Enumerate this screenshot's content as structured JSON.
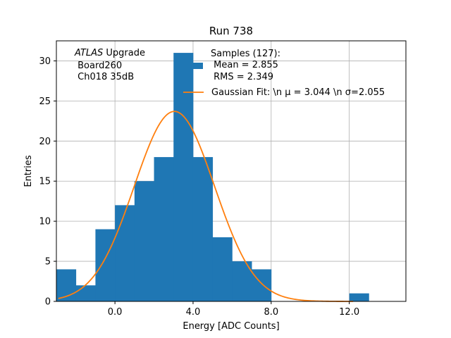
{
  "chart_data": {
    "type": "bar",
    "title": "Run 738",
    "xlabel": "Energy [ADC Counts]",
    "ylabel": "Entries",
    "xlim": [
      -3.0,
      14.9
    ],
    "ylim": [
      0,
      32.5
    ],
    "x_ticks": [
      0,
      4,
      8,
      12
    ],
    "x_tick_labels": [
      "0.0",
      "4.0",
      "8.0",
      "12.0"
    ],
    "y_ticks": [
      0,
      5,
      10,
      15,
      20,
      25,
      30
    ],
    "y_tick_labels": [
      "0",
      "5",
      "10",
      "15",
      "20",
      "25",
      "30"
    ],
    "grid": true,
    "bin_width": 1.0,
    "bins": [
      {
        "left": -3,
        "count": 4
      },
      {
        "left": -2,
        "count": 2
      },
      {
        "left": -1,
        "count": 9
      },
      {
        "left": 0,
        "count": 12
      },
      {
        "left": 1,
        "count": 15
      },
      {
        "left": 2,
        "count": 18
      },
      {
        "left": 3,
        "count": 31
      },
      {
        "left": 4,
        "count": 18
      },
      {
        "left": 5,
        "count": 8
      },
      {
        "left": 6,
        "count": 5
      },
      {
        "left": 7,
        "count": 4
      },
      {
        "left": 8,
        "count": 0
      },
      {
        "left": 9,
        "count": 0
      },
      {
        "left": 10,
        "count": 0
      },
      {
        "left": 11,
        "count": 0
      },
      {
        "left": 12,
        "count": 1
      }
    ],
    "fit": {
      "type": "gaussian",
      "mu": 3.044,
      "sigma": 2.055,
      "amplitude": 23.7,
      "x_range": [
        -2.9,
        12.2
      ]
    },
    "annotation_lines": [
      "ATLAS Upgrade",
      " Board260",
      " Ch018 35dB"
    ],
    "legend": {
      "placement": "top-right",
      "samples_lines": [
        "Samples (127):",
        " Mean = 2.855",
        " RMS = 2.349"
      ],
      "fit_label": "Gaussian Fit: \\n $\\mu$ = 3.044 \\n $\\sigma$=2.055",
      "fit_label_display": "Gaussian Fit: \\n μ = 3.044 \\n σ=2.055"
    },
    "colors": {
      "bars": "#1f77b4",
      "fit": "#ff7f0e",
      "grid": "#b0b0b0",
      "axes": "#000000"
    }
  }
}
